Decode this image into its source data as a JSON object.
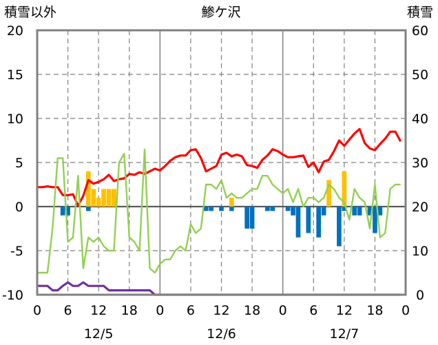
{
  "chart_data": {
    "type": "bar+line",
    "title": "鯵ケ沢",
    "left_axis_title": "積雪以外",
    "right_axis_title": "積雪",
    "left_ylim": [
      -10,
      20
    ],
    "right_ylim": [
      0,
      60
    ],
    "left_ticks": [
      "20",
      "15",
      "10",
      "5",
      "0",
      "-5",
      "-10"
    ],
    "right_ticks": [
      "60",
      "50",
      "40",
      "30",
      "20",
      "10",
      "0"
    ],
    "x_tick_labels": [
      "0",
      "6",
      "12",
      "18",
      "0",
      "6",
      "12",
      "18",
      "0",
      "6",
      "12",
      "18",
      "0"
    ],
    "date_labels": [
      "12/5",
      "12/6",
      "12/7"
    ],
    "x_range_hours": [
      0,
      72
    ],
    "grid": true,
    "colors": {
      "temperature": "#ff0000",
      "snow_depth": "#92d050",
      "wind": "#7030a0",
      "precip": "#ffc000",
      "snow_change": "#0070c0",
      "grid": "#808080",
      "axis": "#808080"
    },
    "precip_bars": [
      {
        "x": 10,
        "y": 4
      },
      {
        "x": 11,
        "y": 2
      },
      {
        "x": 12,
        "y": 1
      },
      {
        "x": 13,
        "y": 2
      },
      {
        "x": 14,
        "y": 2
      },
      {
        "x": 15,
        "y": 2
      },
      {
        "x": 38,
        "y": 1
      },
      {
        "x": 57,
        "y": 3
      },
      {
        "x": 60,
        "y": 4
      }
    ],
    "snow_change_bars": [
      {
        "x": 5,
        "y": -1
      },
      {
        "x": 6,
        "y": -1
      },
      {
        "x": 10,
        "y": -0.5
      },
      {
        "x": 33,
        "y": -0.5
      },
      {
        "x": 34,
        "y": -0.5
      },
      {
        "x": 36,
        "y": -0.5
      },
      {
        "x": 38,
        "y": -0.5
      },
      {
        "x": 41,
        "y": -2.5
      },
      {
        "x": 42,
        "y": -2.5
      },
      {
        "x": 45,
        "y": -0.5
      },
      {
        "x": 46,
        "y": -0.5
      },
      {
        "x": 49,
        "y": -0.5
      },
      {
        "x": 50,
        "y": -1
      },
      {
        "x": 51,
        "y": -3.5
      },
      {
        "x": 53,
        "y": -3
      },
      {
        "x": 55,
        "y": -3.5
      },
      {
        "x": 56,
        "y": -1
      },
      {
        "x": 59,
        "y": -4.5
      },
      {
        "x": 60,
        "y": -0.5
      },
      {
        "x": 62,
        "y": -1
      },
      {
        "x": 63,
        "y": -1
      },
      {
        "x": 65,
        "y": -1
      },
      {
        "x": 66,
        "y": -3
      },
      {
        "x": 67,
        "y": -1
      }
    ],
    "series": [
      {
        "name": "temperature",
        "axis": "left",
        "x": [
          0,
          1,
          2,
          3,
          4,
          5,
          6,
          7,
          8,
          9,
          10,
          11,
          12,
          13,
          14,
          15,
          16,
          17,
          18,
          19,
          20,
          21,
          22,
          23,
          24,
          25,
          26,
          27,
          28,
          29,
          30,
          31,
          32,
          33,
          34,
          35,
          36,
          37,
          38,
          39,
          40,
          41,
          42,
          43,
          44,
          45,
          46,
          47,
          48,
          49,
          50,
          51,
          52,
          53,
          54,
          55,
          56,
          57,
          58,
          59,
          60,
          61,
          62,
          63,
          64,
          65,
          66,
          67,
          68,
          69,
          70,
          71
        ],
        "y": [
          2.2,
          2.2,
          2.3,
          2.2,
          2.2,
          1.3,
          1.3,
          1.4,
          0.1,
          1.2,
          3.0,
          2.6,
          2.8,
          3.1,
          3.6,
          2.9,
          3.1,
          3.2,
          3.7,
          3.6,
          3.9,
          3.7,
          4.0,
          4.3,
          4.1,
          4.6,
          5.2,
          5.6,
          5.8,
          5.8,
          6.4,
          6.5,
          5.5,
          4.0,
          4.3,
          4.6,
          5.9,
          6.1,
          5.7,
          5.9,
          5.7,
          4.7,
          4.6,
          4.4,
          5.3,
          5.8,
          6.5,
          6.3,
          5.9,
          5.6,
          5.6,
          5.7,
          5.8,
          4.5,
          5.0,
          3.9,
          5.1,
          5.3,
          6.3,
          7.5,
          6.9,
          7.6,
          8.3,
          8.8,
          7.2,
          6.6,
          6.4,
          7.1,
          7.7,
          8.5,
          8.5,
          7.4
        ]
      },
      {
        "name": "snow_depth",
        "axis": "right",
        "x": [
          0,
          1,
          2,
          3,
          4,
          5,
          6,
          7,
          8,
          9,
          10,
          11,
          12,
          13,
          14,
          15,
          16,
          17,
          18,
          19,
          20,
          21,
          22,
          23,
          24,
          25,
          26,
          27,
          28,
          29,
          30,
          31,
          32,
          33,
          34,
          35,
          36,
          37,
          38,
          39,
          40,
          41,
          42,
          43,
          44,
          45,
          46,
          47,
          48,
          49,
          50,
          51,
          52,
          53,
          54,
          55,
          56,
          57,
          58,
          59,
          60,
          61,
          62,
          63,
          64,
          65,
          66,
          67,
          68,
          69,
          70,
          71
        ],
        "y": [
          5,
          5,
          5,
          15,
          31,
          31,
          12,
          13,
          27,
          6,
          13,
          12,
          13,
          11,
          10,
          10,
          30,
          32,
          13,
          12,
          10,
          33,
          6,
          5,
          7,
          8,
          8,
          10,
          11,
          10,
          16,
          14,
          15,
          25,
          25,
          24,
          26,
          22,
          23,
          22,
          22,
          23,
          24,
          24,
          27,
          27,
          25,
          24,
          23,
          24,
          21,
          24,
          20,
          22,
          22,
          21,
          22,
          25,
          24,
          22,
          21,
          17,
          24,
          22,
          21,
          15,
          25,
          13,
          14,
          24,
          25,
          25
        ]
      },
      {
        "name": "wind",
        "axis": "left",
        "x": [
          0,
          1,
          2,
          3,
          4,
          5,
          6,
          7,
          8,
          9,
          10,
          11,
          12,
          13,
          14,
          15,
          16,
          17,
          18,
          19,
          20,
          21,
          22,
          23,
          24,
          25,
          26,
          27,
          28,
          29,
          30,
          31,
          32,
          33,
          34,
          35,
          36,
          37,
          38,
          39,
          40,
          41,
          42,
          43,
          44,
          45,
          46,
          47,
          48,
          49,
          50,
          51,
          52,
          53,
          54,
          55,
          56,
          57,
          58,
          59,
          60,
          61,
          62,
          63,
          64,
          65,
          66,
          67,
          68,
          69,
          70,
          71
        ],
        "y": [
          -9,
          -9,
          -9,
          -9.5,
          -9.5,
          -9,
          -8.6,
          -9,
          -9,
          -8.6,
          -9,
          -9,
          -9,
          -9,
          -9.5,
          -9.5,
          -9.5,
          -9.5,
          -9.5,
          -9.5,
          -9.5,
          -9.5,
          -9.5,
          -10,
          -10,
          -10,
          -10,
          -10,
          -10,
          -10,
          -10,
          -10,
          -10,
          -10,
          -10,
          -10,
          -10,
          -10,
          -10,
          -10,
          -10,
          -10,
          -10,
          -10,
          -10,
          -10,
          -10,
          -10,
          -10,
          -10,
          -10,
          -10,
          -10,
          -10,
          -10,
          -10,
          -10,
          -10,
          -10,
          -10,
          -10,
          -10,
          -10,
          -10,
          -10,
          -10,
          -10,
          -10,
          -10,
          -10,
          -10,
          -10
        ]
      }
    ]
  }
}
